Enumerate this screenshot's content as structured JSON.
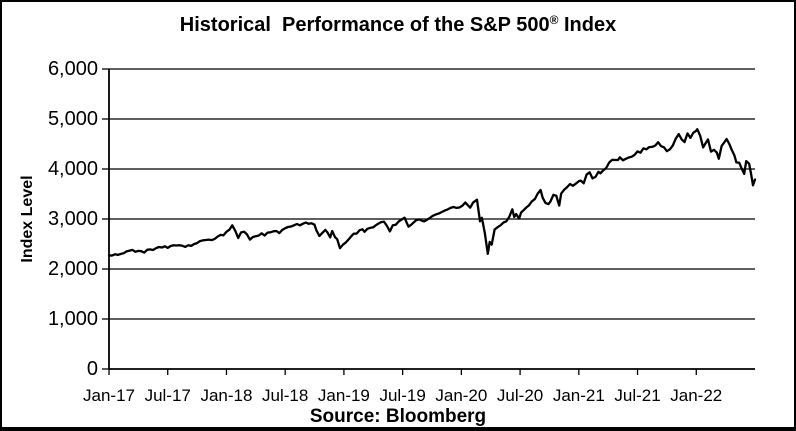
{
  "title": {
    "main": "Historical  Performance of the S&P 500",
    "registered": "®",
    "suffix": " Index"
  },
  "source_caption": "Source: Bloomberg",
  "chart_data": {
    "type": "line",
    "title": "Historical Performance of the S&P 500® Index",
    "xlabel": "",
    "ylabel": "Index Level",
    "ylim": [
      0,
      6000
    ],
    "ytick_step": 1000,
    "ytick_labels": [
      "0",
      "1,000",
      "2,000",
      "3,000",
      "4,000",
      "5,000",
      "6,000"
    ],
    "x_unit": "months since Jan-2017",
    "xlim": [
      0,
      66
    ],
    "xtick_months": [
      0,
      6,
      12,
      18,
      24,
      30,
      36,
      42,
      48,
      54,
      60
    ],
    "xtick_labels": [
      "Jan-17",
      "Jul-17",
      "Jan-18",
      "Jul-18",
      "Jan-19",
      "Jul-19",
      "Jan-20",
      "Jul-20",
      "Jan-21",
      "Jul-21",
      "Jan-22"
    ],
    "grid": "horizontal-only",
    "legend": "none",
    "line_color": "#000000",
    "background_color": "#ffffff",
    "source": "Source: Bloomberg",
    "series": [
      {
        "name": "S&P 500 Index Level",
        "points": [
          [
            0,
            2275
          ],
          [
            0.3,
            2268
          ],
          [
            0.6,
            2295
          ],
          [
            0.9,
            2281
          ],
          [
            1.2,
            2300
          ],
          [
            1.5,
            2316
          ],
          [
            1.8,
            2352
          ],
          [
            2.1,
            2368
          ],
          [
            2.4,
            2381
          ],
          [
            2.7,
            2344
          ],
          [
            3,
            2363
          ],
          [
            3.3,
            2356
          ],
          [
            3.6,
            2329
          ],
          [
            3.9,
            2385
          ],
          [
            4.2,
            2391
          ],
          [
            4.5,
            2380
          ],
          [
            4.8,
            2416
          ],
          [
            5.1,
            2440
          ],
          [
            5.4,
            2430
          ],
          [
            5.7,
            2455
          ],
          [
            6,
            2423
          ],
          [
            6.3,
            2460
          ],
          [
            6.6,
            2473
          ],
          [
            6.9,
            2470
          ],
          [
            7.2,
            2477
          ],
          [
            7.5,
            2465
          ],
          [
            7.8,
            2441
          ],
          [
            8.1,
            2476
          ],
          [
            8.4,
            2461
          ],
          [
            8.7,
            2500
          ],
          [
            9,
            2519
          ],
          [
            9.3,
            2557
          ],
          [
            9.6,
            2575
          ],
          [
            9.9,
            2581
          ],
          [
            10.2,
            2588
          ],
          [
            10.5,
            2578
          ],
          [
            10.8,
            2602
          ],
          [
            11.1,
            2648
          ],
          [
            11.4,
            2682
          ],
          [
            11.7,
            2674
          ],
          [
            12,
            2743
          ],
          [
            12.3,
            2786
          ],
          [
            12.6,
            2873
          ],
          [
            12.9,
            2762
          ],
          [
            13.2,
            2620
          ],
          [
            13.5,
            2732
          ],
          [
            13.8,
            2747
          ],
          [
            14.1,
            2691
          ],
          [
            14.4,
            2588
          ],
          [
            14.7,
            2640
          ],
          [
            15,
            2656
          ],
          [
            15.3,
            2670
          ],
          [
            15.6,
            2713
          ],
          [
            15.9,
            2670
          ],
          [
            16.2,
            2728
          ],
          [
            16.5,
            2735
          ],
          [
            16.8,
            2755
          ],
          [
            17.1,
            2760
          ],
          [
            17.4,
            2718
          ],
          [
            17.7,
            2780
          ],
          [
            18,
            2816
          ],
          [
            18.3,
            2840
          ],
          [
            18.6,
            2850
          ],
          [
            18.9,
            2875
          ],
          [
            19.2,
            2901
          ],
          [
            19.5,
            2875
          ],
          [
            19.8,
            2905
          ],
          [
            20.1,
            2930
          ],
          [
            20.4,
            2905
          ],
          [
            20.7,
            2914
          ],
          [
            21,
            2886
          ],
          [
            21.2,
            2768
          ],
          [
            21.5,
            2660
          ],
          [
            21.8,
            2723
          ],
          [
            22.1,
            2781
          ],
          [
            22.3,
            2736
          ],
          [
            22.6,
            2632
          ],
          [
            22.8,
            2760
          ],
          [
            23.1,
            2633
          ],
          [
            23.3,
            2600
          ],
          [
            23.6,
            2417
          ],
          [
            23.9,
            2486
          ],
          [
            24.2,
            2532
          ],
          [
            24.5,
            2596
          ],
          [
            24.8,
            2665
          ],
          [
            25,
            2707
          ],
          [
            25.3,
            2708
          ],
          [
            25.6,
            2776
          ],
          [
            25.9,
            2793
          ],
          [
            26.1,
            2743
          ],
          [
            26.4,
            2803
          ],
          [
            26.7,
            2822
          ],
          [
            27,
            2834
          ],
          [
            27.2,
            2867
          ],
          [
            27.5,
            2907
          ],
          [
            27.8,
            2939
          ],
          [
            28.1,
            2946
          ],
          [
            28.4,
            2860
          ],
          [
            28.7,
            2752
          ],
          [
            29,
            2873
          ],
          [
            29.3,
            2886
          ],
          [
            29.6,
            2950
          ],
          [
            29.9,
            2990
          ],
          [
            30.2,
            3026
          ],
          [
            30.4,
            2932
          ],
          [
            30.6,
            2847
          ],
          [
            30.9,
            2889
          ],
          [
            31.1,
            2926
          ],
          [
            31.4,
            2979
          ],
          [
            31.7,
            2992
          ],
          [
            32,
            2962
          ],
          [
            32.2,
            2952
          ],
          [
            32.5,
            2986
          ],
          [
            32.8,
            3023
          ],
          [
            33.1,
            3067
          ],
          [
            33.4,
            3093
          ],
          [
            33.7,
            3110
          ],
          [
            34,
            3141
          ],
          [
            34.3,
            3169
          ],
          [
            34.6,
            3191
          ],
          [
            34.9,
            3221
          ],
          [
            35.2,
            3240
          ],
          [
            35.5,
            3221
          ],
          [
            35.8,
            3231
          ],
          [
            36.1,
            3265
          ],
          [
            36.4,
            3330
          ],
          [
            36.9,
            3226
          ],
          [
            37.2,
            3328
          ],
          [
            37.6,
            3386
          ],
          [
            37.9,
            2954
          ],
          [
            38.1,
            3024
          ],
          [
            38.4,
            2711
          ],
          [
            38.7,
            2305
          ],
          [
            38.9,
            2541
          ],
          [
            39.1,
            2489
          ],
          [
            39.4,
            2790
          ],
          [
            39.7,
            2837
          ],
          [
            40,
            2874
          ],
          [
            40.3,
            2930
          ],
          [
            40.6,
            2955
          ],
          [
            40.9,
            3044
          ],
          [
            41.2,
            3194
          ],
          [
            41.4,
            3041
          ],
          [
            41.6,
            3098
          ],
          [
            41.9,
            3009
          ],
          [
            42.1,
            3130
          ],
          [
            42.4,
            3185
          ],
          [
            42.6,
            3225
          ],
          [
            42.9,
            3271
          ],
          [
            43.2,
            3351
          ],
          [
            43.5,
            3397
          ],
          [
            43.8,
            3508
          ],
          [
            44.1,
            3580
          ],
          [
            44.3,
            3427
          ],
          [
            44.6,
            3319
          ],
          [
            44.9,
            3298
          ],
          [
            45.1,
            3348
          ],
          [
            45.4,
            3484
          ],
          [
            45.7,
            3465
          ],
          [
            46,
            3270
          ],
          [
            46.2,
            3509
          ],
          [
            46.5,
            3585
          ],
          [
            46.8,
            3638
          ],
          [
            47.1,
            3699
          ],
          [
            47.4,
            3663
          ],
          [
            47.7,
            3709
          ],
          [
            48,
            3756
          ],
          [
            48.2,
            3768
          ],
          [
            48.5,
            3714
          ],
          [
            48.8,
            3887
          ],
          [
            49.1,
            3935
          ],
          [
            49.4,
            3811
          ],
          [
            49.7,
            3843
          ],
          [
            50,
            3943
          ],
          [
            50.2,
            3913
          ],
          [
            50.5,
            3975
          ],
          [
            50.8,
            4020
          ],
          [
            51.1,
            4129
          ],
          [
            51.4,
            4185
          ],
          [
            51.7,
            4180
          ],
          [
            52,
            4181
          ],
          [
            52.2,
            4233
          ],
          [
            52.5,
            4174
          ],
          [
            52.8,
            4204
          ],
          [
            53.1,
            4230
          ],
          [
            53.4,
            4247
          ],
          [
            53.7,
            4281
          ],
          [
            54,
            4352
          ],
          [
            54.3,
            4327
          ],
          [
            54.6,
            4412
          ],
          [
            54.9,
            4395
          ],
          [
            55.2,
            4437
          ],
          [
            55.5,
            4442
          ],
          [
            55.8,
            4468
          ],
          [
            56.1,
            4536
          ],
          [
            56.4,
            4459
          ],
          [
            56.7,
            4433
          ],
          [
            57,
            4357
          ],
          [
            57.3,
            4391
          ],
          [
            57.6,
            4471
          ],
          [
            57.9,
            4605
          ],
          [
            58.2,
            4698
          ],
          [
            58.5,
            4595
          ],
          [
            58.8,
            4538
          ],
          [
            59.1,
            4712
          ],
          [
            59.4,
            4621
          ],
          [
            59.7,
            4725
          ],
          [
            60,
            4766
          ],
          [
            60.1,
            4797
          ],
          [
            60.4,
            4663
          ],
          [
            60.7,
            4432
          ],
          [
            60.9,
            4500
          ],
          [
            61.2,
            4589
          ],
          [
            61.5,
            4349
          ],
          [
            61.8,
            4385
          ],
          [
            62.1,
            4329
          ],
          [
            62.3,
            4204
          ],
          [
            62.6,
            4463
          ],
          [
            62.9,
            4543
          ],
          [
            63.1,
            4600
          ],
          [
            63.4,
            4488
          ],
          [
            63.6,
            4392
          ],
          [
            63.9,
            4272
          ],
          [
            64.1,
            4131
          ],
          [
            64.4,
            4123
          ],
          [
            64.6,
            4024
          ],
          [
            64.9,
            3901
          ],
          [
            65.1,
            4158
          ],
          [
            65.4,
            4109
          ],
          [
            65.6,
            3900
          ],
          [
            65.8,
            3675
          ],
          [
            66,
            3790
          ]
        ]
      }
    ]
  }
}
